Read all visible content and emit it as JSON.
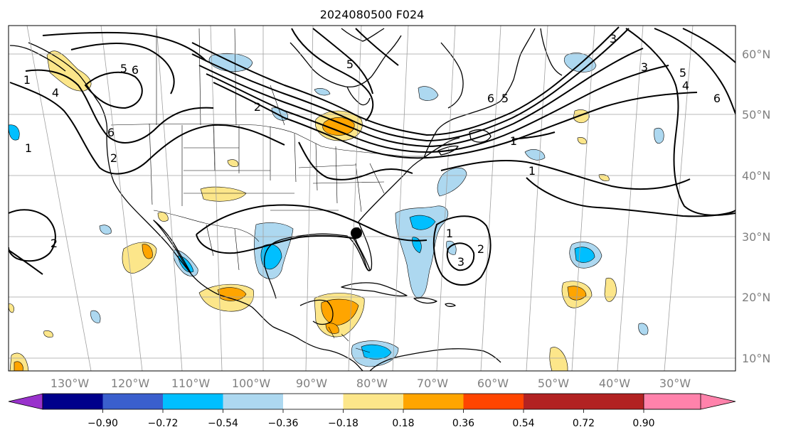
{
  "title": "2024080500 F024",
  "map": {
    "lon_labels": [
      "130°W",
      "120°W",
      "110°W",
      "100°W",
      "90°W",
      "80°W",
      "70°W",
      "60°W",
      "50°W",
      "40°W",
      "30°W"
    ],
    "lat_labels": [
      "60°N",
      "50°N",
      "40°N",
      "30°N",
      "20°N",
      "10°N"
    ],
    "contour_labels": [
      "1",
      "2",
      "6",
      "5",
      "4",
      "6",
      "5",
      "2",
      "1",
      "3",
      "6",
      "5",
      "4",
      "3",
      "1",
      "1",
      "2",
      "3",
      "1",
      "2",
      "5",
      "6"
    ],
    "marker": "filled-black-circle"
  },
  "colorbar": {
    "tick_labels": [
      "−0.90",
      "−0.72",
      "−0.54",
      "−0.36",
      "−0.18",
      "0.18",
      "0.36",
      "0.54",
      "0.72",
      "0.90"
    ],
    "colors": [
      "#9932cc",
      "#00008b",
      "#3a5fcd",
      "#00bfff",
      "#add8f0",
      "#ffffff",
      "#fce68a",
      "#ffa500",
      "#ff4500",
      "#b22222",
      "#ff82ab"
    ]
  }
}
